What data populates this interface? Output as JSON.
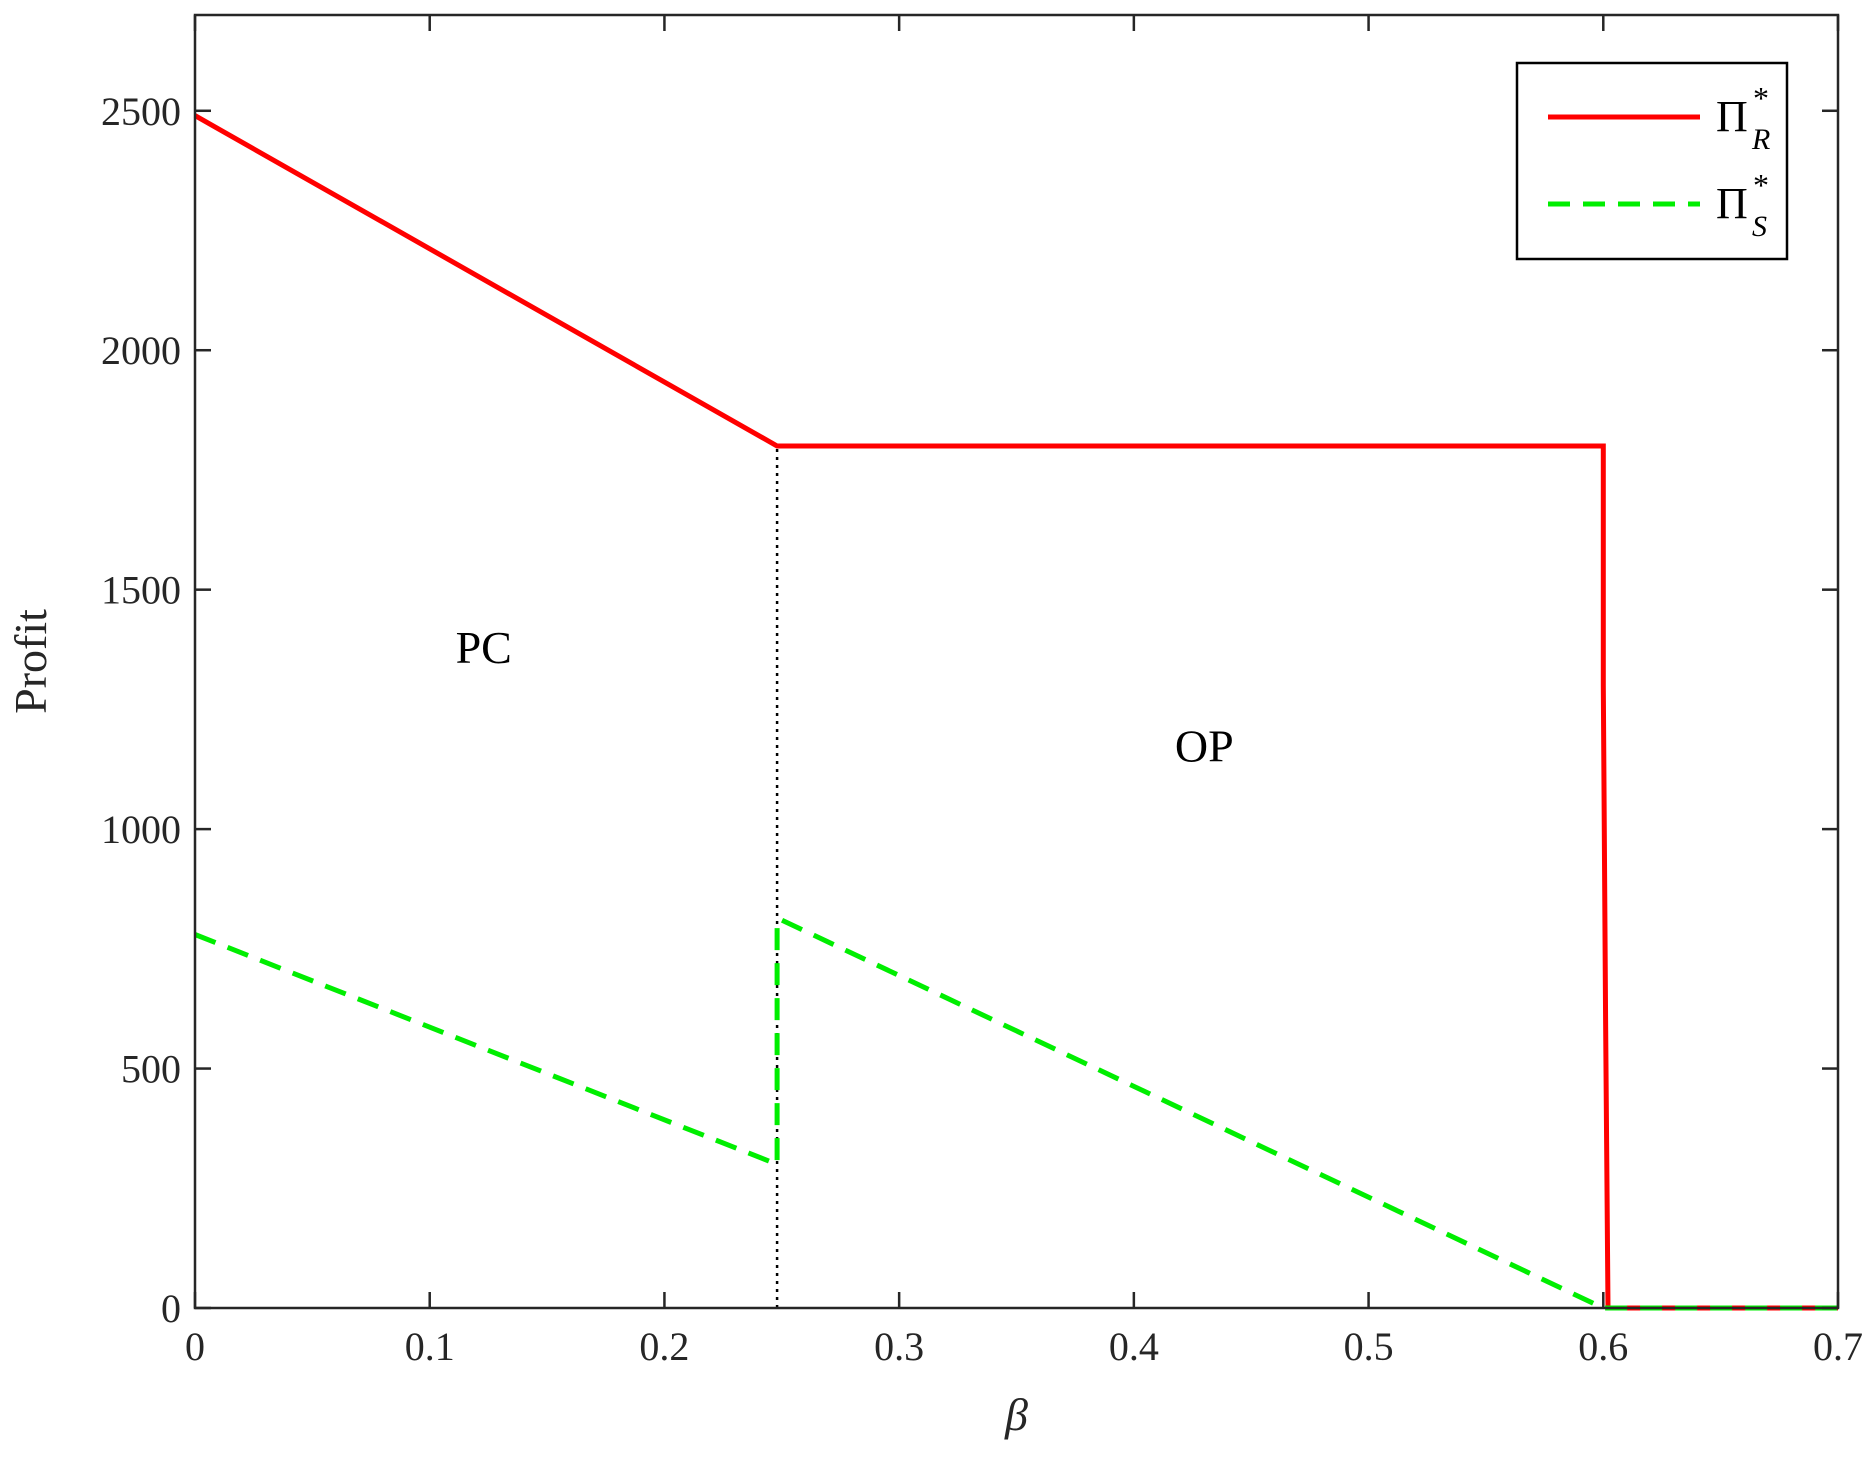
{
  "chart_data": {
    "type": "line",
    "xlabel": "β",
    "ylabel": "Profit",
    "xlim": [
      0,
      0.7
    ],
    "ylim": [
      0,
      2700
    ],
    "xticks": [
      0,
      0.1,
      0.2,
      0.3,
      0.4,
      0.5,
      0.6,
      0.7
    ],
    "xtick_labels": [
      "0",
      "0.1",
      "0.2",
      "0.3",
      "0.4",
      "0.5",
      "0.6",
      "0.7"
    ],
    "yticks": [
      0,
      500,
      1000,
      1500,
      2000,
      2500
    ],
    "ytick_labels": [
      "0",
      "500",
      "1000",
      "1500",
      "2000",
      "2500"
    ],
    "grid": false,
    "legend_position": "top-right",
    "series": [
      {
        "name": "Π*R",
        "name_main": "Π",
        "name_sup": "*",
        "name_sub": "R",
        "color": "#ff0000",
        "style": "solid",
        "points": [
          [
            0,
            2490
          ],
          [
            0.248,
            1800
          ],
          [
            0.6,
            1800
          ],
          [
            0.6,
            1300
          ],
          [
            0.601,
            600
          ],
          [
            0.602,
            0
          ],
          [
            0.7,
            0
          ]
        ]
      },
      {
        "name": "Π*S",
        "name_main": "Π",
        "name_sup": "*",
        "name_sub": "S",
        "color": "#00ee00",
        "style": "dashed",
        "points": [
          [
            0,
            780
          ],
          [
            0.248,
            300
          ],
          [
            0.248,
            810
          ],
          [
            0.25,
            810
          ],
          [
            0.6,
            0
          ],
          [
            0.7,
            0
          ]
        ]
      }
    ],
    "reference_line": {
      "x": 0.248,
      "y_from": 0,
      "y_to": 1800,
      "color": "#000000",
      "style": "dotted"
    },
    "annotations": [
      {
        "text": "PC",
        "x": 0.123,
        "y": 1380
      },
      {
        "text": "OP",
        "x": 0.43,
        "y": 1175
      }
    ]
  }
}
